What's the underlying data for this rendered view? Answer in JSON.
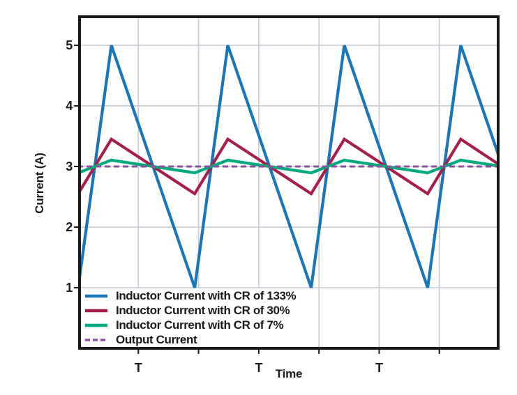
{
  "figure": {
    "background": "#FFFFFF"
  },
  "colors": {
    "cr133_blue": "#1A76B9",
    "cr30_crimson": "#A81E4A",
    "cr7_green": "#00A87E",
    "output_purple": "#8E4FA0",
    "grid": "#C8C9D3",
    "axis": "#1A1A1A",
    "text": "#1A1A1A"
  },
  "chart_data": {
    "type": "line",
    "title": "",
    "xlabel": "Time",
    "ylabel": "Current (A)",
    "x_range": [
      0,
      3.571
    ],
    "y_range": [
      0,
      5.448
    ],
    "grid": "on",
    "legend_position": "bottom-left",
    "y_ticks": [
      {
        "v": 1,
        "label": "1"
      },
      {
        "v": 2,
        "label": "2"
      },
      {
        "v": 3,
        "label": "3"
      },
      {
        "v": 4,
        "label": "4"
      },
      {
        "v": 5,
        "label": "5"
      }
    ],
    "x_ticks": [
      {
        "t": 0.493,
        "label": "T"
      },
      {
        "t": 1.01,
        "label": ""
      },
      {
        "t": 1.527,
        "label": "T"
      },
      {
        "t": 2.044,
        "label": ""
      },
      {
        "t": 2.561,
        "label": "T"
      },
      {
        "t": 3.078,
        "label": ""
      }
    ],
    "series": [
      {
        "name": "Inductor Current with CR of 133%",
        "color": "#1A76B9",
        "style": "solid",
        "points": [
          [
            -0.024,
            1
          ],
          [
            0.261,
            5
          ],
          [
            0.977,
            1
          ],
          [
            1.261,
            5
          ],
          [
            1.977,
            1
          ],
          [
            2.262,
            5
          ],
          [
            2.978,
            1
          ],
          [
            3.262,
            5
          ],
          [
            3.6,
            3.11
          ]
        ]
      },
      {
        "name": "Inductor Current with CR of 30%",
        "color": "#A81E4A",
        "style": "solid",
        "points": [
          [
            -0.024,
            2.55
          ],
          [
            0.261,
            3.45
          ],
          [
            0.977,
            2.55
          ],
          [
            1.261,
            3.45
          ],
          [
            1.977,
            2.55
          ],
          [
            2.262,
            3.45
          ],
          [
            2.978,
            2.55
          ],
          [
            3.262,
            3.45
          ],
          [
            3.6,
            3.02
          ]
        ]
      },
      {
        "name": "Inductor Current with CR of 7%",
        "color": "#00A87E",
        "style": "solid",
        "points": [
          [
            -0.024,
            2.895
          ],
          [
            0.261,
            3.105
          ],
          [
            0.977,
            2.895
          ],
          [
            1.261,
            3.105
          ],
          [
            1.977,
            2.895
          ],
          [
            2.262,
            3.105
          ],
          [
            2.978,
            2.895
          ],
          [
            3.262,
            3.105
          ],
          [
            3.6,
            3.005
          ]
        ]
      },
      {
        "name": "Output Current",
        "color": "#8E4FA0",
        "style": "dashed",
        "points": [
          [
            -0.03,
            3
          ],
          [
            3.6,
            3
          ]
        ]
      }
    ]
  }
}
